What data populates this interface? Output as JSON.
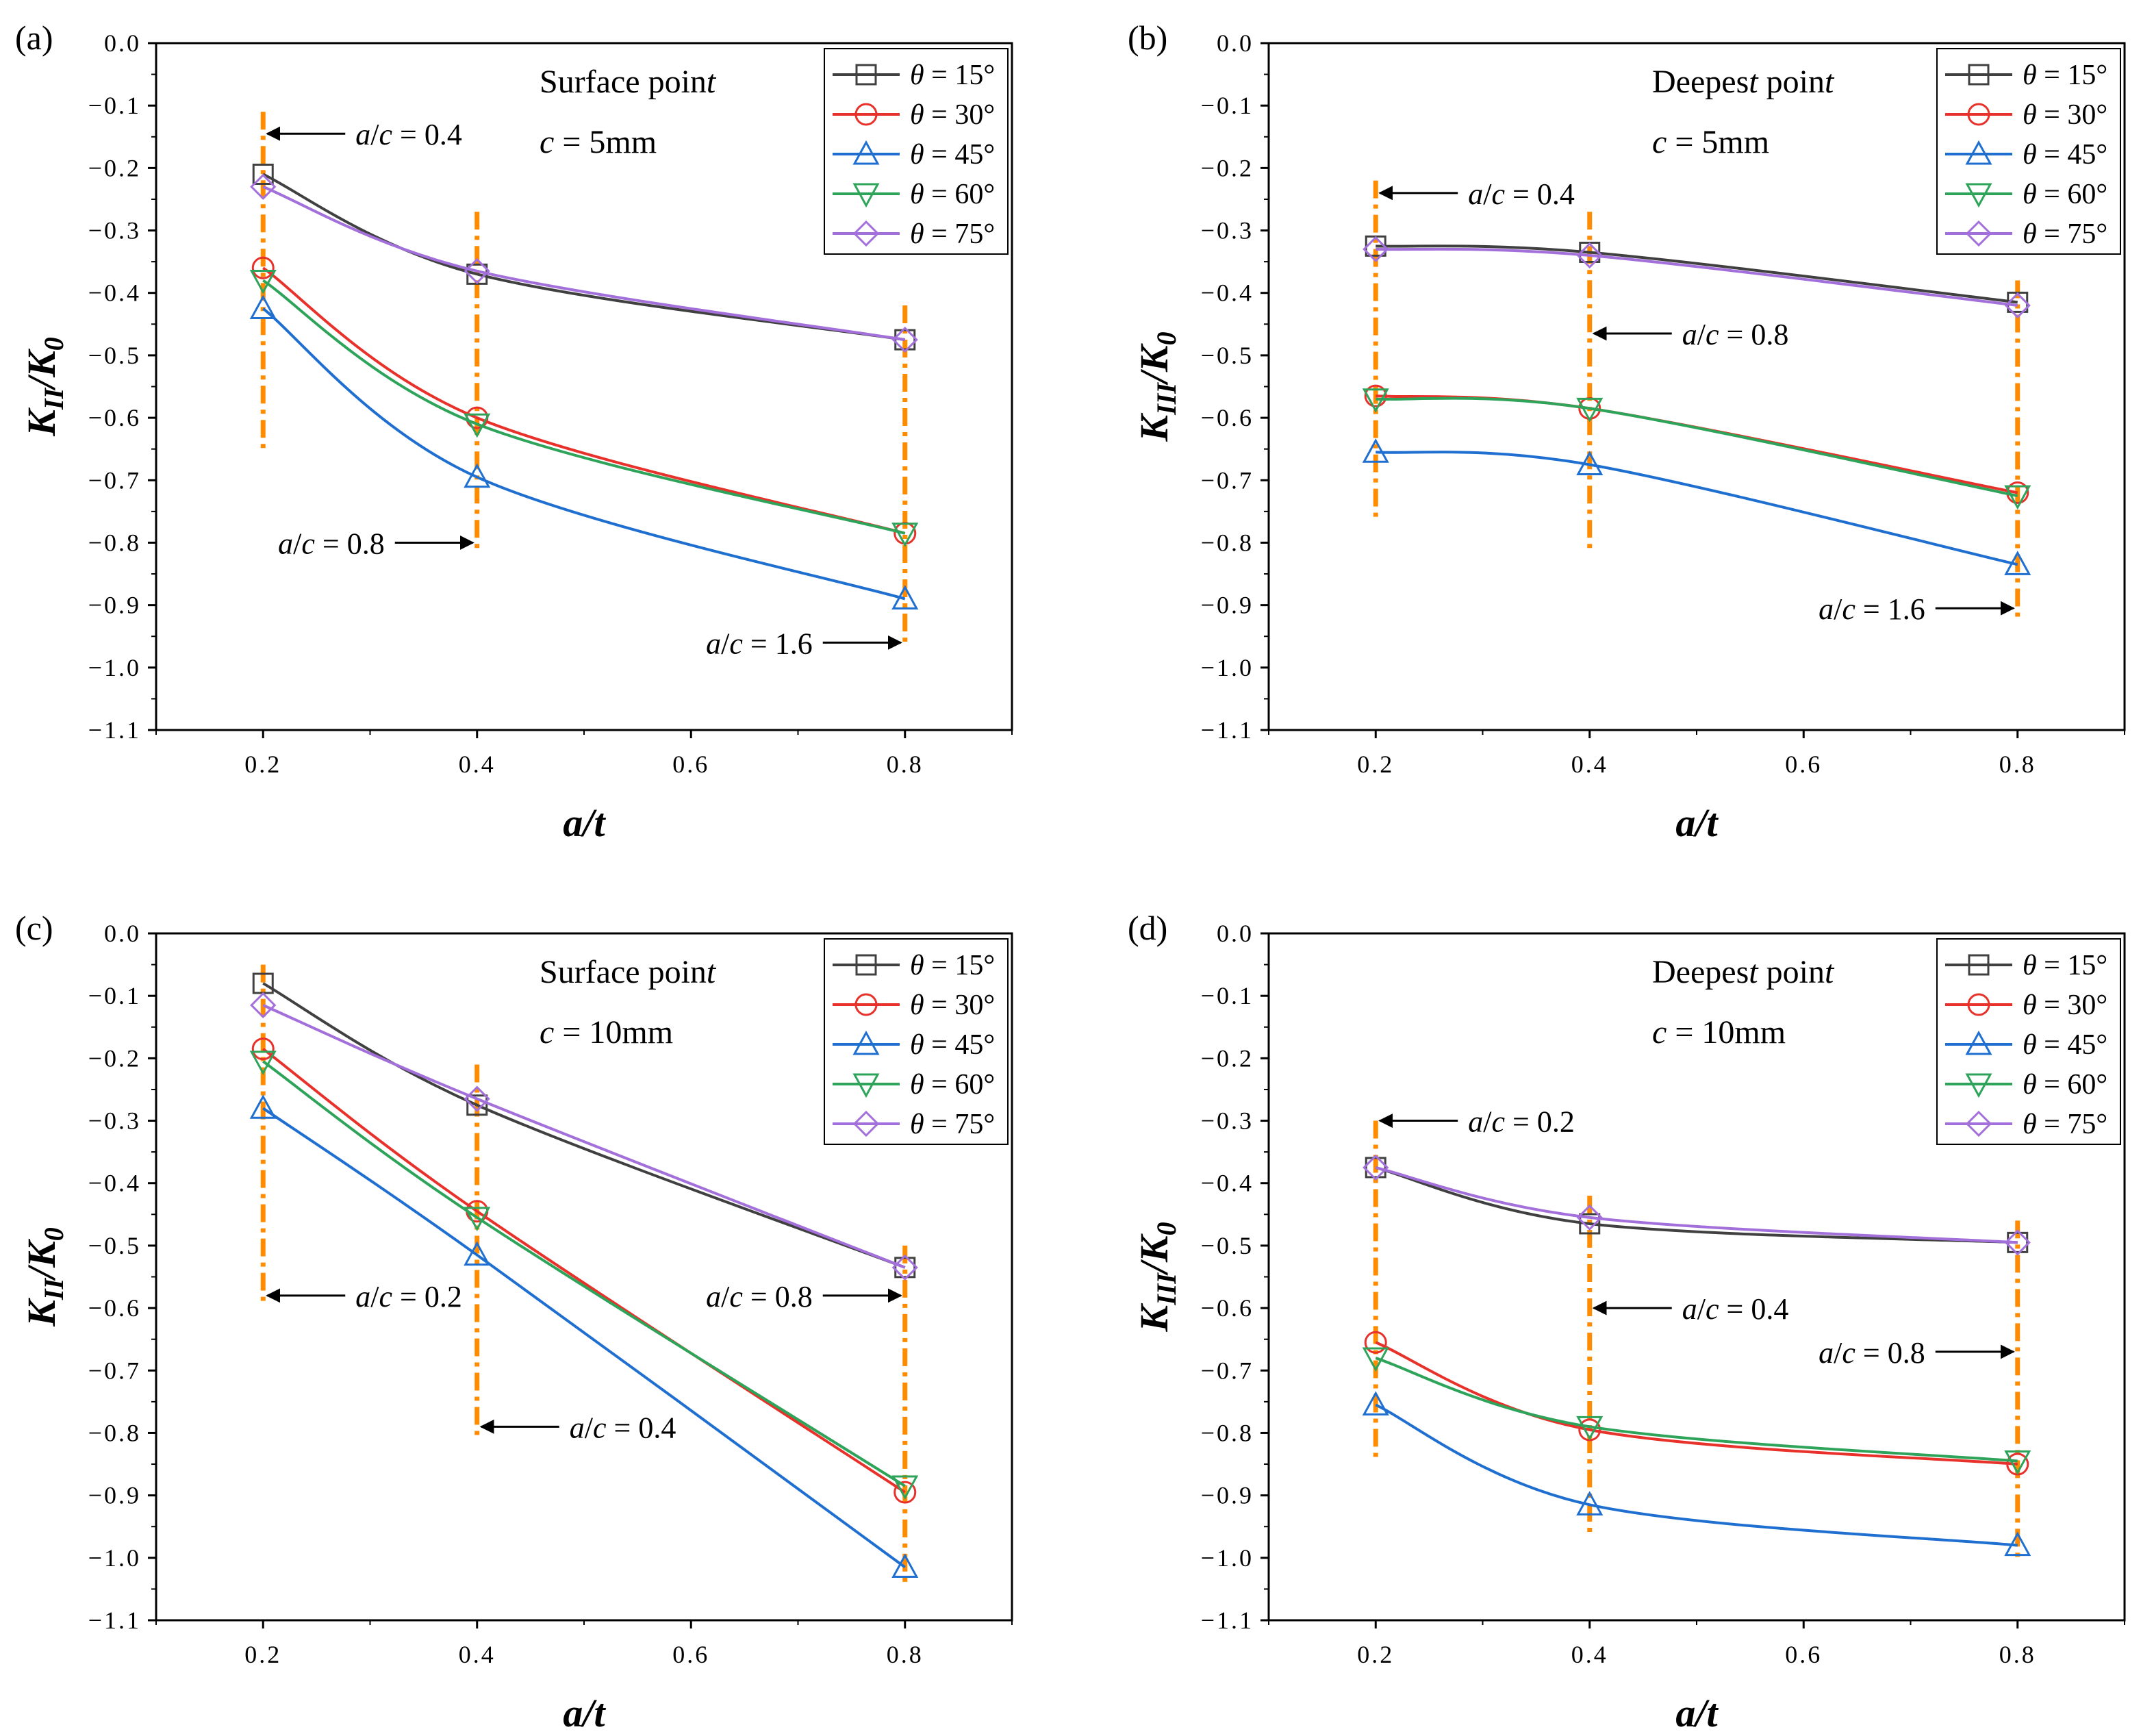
{
  "figure": {
    "colors": {
      "15": "#404040",
      "30": "#e8312a",
      "45": "#1f6fd1",
      "60": "#2ea35a",
      "75": "#a370db",
      "marker_line": "#ff8c00"
    }
  },
  "chart_data": [
    {
      "type": "line",
      "panel": "(a)",
      "title": "",
      "annotations": [
        "Surface point",
        "c = 5mm"
      ],
      "xlabel": "a/t",
      "ylabel": "K_II/K_0",
      "xlim": [
        0.1,
        0.9
      ],
      "ylim": [
        -1.1,
        0.0
      ],
      "x_ticks": [
        "0.2",
        "0.4",
        "0.6",
        "0.8"
      ],
      "y_ticks": [
        "0.0",
        "−0.1",
        "−0.2",
        "−0.3",
        "−0.4",
        "−0.5",
        "−0.6",
        "−0.7",
        "−0.8",
        "−0.9",
        "−1.0",
        "−1.1"
      ],
      "x": [
        0.2,
        0.4,
        0.8
      ],
      "series": [
        {
          "name": "θ = 15°",
          "values": [
            -0.21,
            -0.37,
            -0.475
          ]
        },
        {
          "name": "θ = 30°",
          "values": [
            -0.36,
            -0.6,
            -0.785
          ]
        },
        {
          "name": "θ = 45°",
          "values": [
            -0.425,
            -0.695,
            -0.89
          ]
        },
        {
          "name": "θ = 60°",
          "values": [
            -0.38,
            -0.61,
            -0.785
          ]
        },
        {
          "name": "θ = 75°",
          "values": [
            -0.23,
            -0.365,
            -0.475
          ]
        }
      ],
      "reference_lines": [
        {
          "label": "a/c = 0.4",
          "x": 0.2,
          "y_range": [
            -0.11,
            -0.65
          ],
          "label_y": -0.145,
          "side": "right"
        },
        {
          "label": "a/c = 0.8",
          "x": 0.4,
          "y_range": [
            -0.27,
            -0.81
          ],
          "label_y": -0.8,
          "side": "left"
        },
        {
          "label": "a/c = 1.6",
          "x": 0.8,
          "y_range": [
            -0.42,
            -0.96
          ],
          "label_y": -0.96,
          "side": "left"
        }
      ],
      "legend": "top-right"
    },
    {
      "type": "line",
      "panel": "(b)",
      "title": "",
      "annotations": [
        "Deepest point",
        "c = 5mm"
      ],
      "xlabel": "a/t",
      "ylabel": "K_III/K_0",
      "xlim": [
        0.1,
        0.9
      ],
      "ylim": [
        -1.1,
        0.0
      ],
      "x_ticks": [
        "0.2",
        "0.4",
        "0.6",
        "0.8"
      ],
      "y_ticks": [
        "0.0",
        "−0.1",
        "−0.2",
        "−0.3",
        "−0.4",
        "−0.5",
        "−0.6",
        "−0.7",
        "−0.8",
        "−0.9",
        "−1.0",
        "−1.1"
      ],
      "x": [
        0.2,
        0.4,
        0.8
      ],
      "series": [
        {
          "name": "θ = 15°",
          "values": [
            -0.325,
            -0.335,
            -0.415
          ]
        },
        {
          "name": "θ = 30°",
          "values": [
            -0.565,
            -0.585,
            -0.72
          ]
        },
        {
          "name": "θ = 45°",
          "values": [
            -0.655,
            -0.675,
            -0.835
          ]
        },
        {
          "name": "θ = 60°",
          "values": [
            -0.57,
            -0.585,
            -0.725
          ]
        },
        {
          "name": "θ = 75°",
          "values": [
            -0.33,
            -0.34,
            -0.42
          ]
        }
      ],
      "reference_lines": [
        {
          "label": "a/c = 0.4",
          "x": 0.2,
          "y_range": [
            -0.22,
            -0.76
          ],
          "label_y": -0.24,
          "side": "right"
        },
        {
          "label": "a/c = 0.8",
          "x": 0.4,
          "y_range": [
            -0.27,
            -0.81
          ],
          "label_y": -0.465,
          "side": "right"
        },
        {
          "label": "a/c = 1.6",
          "x": 0.8,
          "y_range": [
            -0.38,
            -0.92
          ],
          "label_y": -0.905,
          "side": "left"
        }
      ],
      "legend": "top-right"
    },
    {
      "type": "line",
      "panel": "(c)",
      "title": "",
      "annotations": [
        "Surface point",
        "c = 10mm"
      ],
      "xlabel": "a/t",
      "ylabel": "K_II/K_0",
      "xlim": [
        0.1,
        0.9
      ],
      "ylim": [
        -1.1,
        0.0
      ],
      "x_ticks": [
        "0.2",
        "0.4",
        "0.6",
        "0.8"
      ],
      "y_ticks": [
        "0.0",
        "−0.1",
        "−0.2",
        "−0.3",
        "−0.4",
        "−0.5",
        "−0.6",
        "−0.7",
        "−0.8",
        "−0.9",
        "−1.0",
        "−1.1"
      ],
      "x": [
        0.2,
        0.4,
        0.8
      ],
      "series": [
        {
          "name": "θ = 15°",
          "values": [
            -0.08,
            -0.275,
            -0.535
          ]
        },
        {
          "name": "θ = 30°",
          "values": [
            -0.185,
            -0.445,
            -0.895
          ]
        },
        {
          "name": "θ = 45°",
          "values": [
            -0.28,
            -0.515,
            -1.015
          ]
        },
        {
          "name": "θ = 60°",
          "values": [
            -0.205,
            -0.455,
            -0.885
          ]
        },
        {
          "name": "θ = 75°",
          "values": [
            -0.115,
            -0.265,
            -0.535
          ]
        }
      ],
      "reference_lines": [
        {
          "label": "a/c = 0.2",
          "x": 0.2,
          "y_range": [
            -0.05,
            -0.59
          ],
          "label_y": -0.58,
          "side": "right"
        },
        {
          "label": "a/c = 0.4",
          "x": 0.4,
          "y_range": [
            -0.21,
            -0.81
          ],
          "label_y": -0.79,
          "side": "right"
        },
        {
          "label": "a/c = 0.8",
          "x": 0.8,
          "y_range": [
            -0.5,
            -1.04
          ],
          "label_y": -0.58,
          "side": "left"
        }
      ],
      "legend": "top-right"
    },
    {
      "type": "line",
      "panel": "(d)",
      "title": "",
      "annotations": [
        "Deepest point",
        "c = 10mm"
      ],
      "xlabel": "a/t",
      "ylabel": "K_III/K_0",
      "xlim": [
        0.1,
        0.9
      ],
      "ylim": [
        -1.1,
        0.0
      ],
      "x_ticks": [
        "0.2",
        "0.4",
        "0.6",
        "0.8"
      ],
      "y_ticks": [
        "0.0",
        "−0.1",
        "−0.2",
        "−0.3",
        "−0.4",
        "−0.5",
        "−0.6",
        "−0.7",
        "−0.8",
        "−0.9",
        "−1.0",
        "−1.1"
      ],
      "x": [
        0.2,
        0.4,
        0.8
      ],
      "series": [
        {
          "name": "θ = 15°",
          "values": [
            -0.375,
            -0.465,
            -0.495
          ]
        },
        {
          "name": "θ = 30°",
          "values": [
            -0.655,
            -0.795,
            -0.85
          ]
        },
        {
          "name": "θ = 45°",
          "values": [
            -0.755,
            -0.915,
            -0.98
          ]
        },
        {
          "name": "θ = 60°",
          "values": [
            -0.68,
            -0.79,
            -0.845
          ]
        },
        {
          "name": "θ = 75°",
          "values": [
            -0.375,
            -0.455,
            -0.495
          ]
        }
      ],
      "reference_lines": [
        {
          "label": "a/c = 0.2",
          "x": 0.2,
          "y_range": [
            -0.3,
            -0.84
          ],
          "label_y": -0.3,
          "side": "right"
        },
        {
          "label": "a/c = 0.4",
          "x": 0.4,
          "y_range": [
            -0.42,
            -0.96
          ],
          "label_y": -0.6,
          "side": "right"
        },
        {
          "label": "a/c = 0.8",
          "x": 0.8,
          "y_range": [
            -0.46,
            -1.0
          ],
          "label_y": -0.67,
          "side": "left"
        }
      ],
      "legend": "top-right"
    }
  ]
}
